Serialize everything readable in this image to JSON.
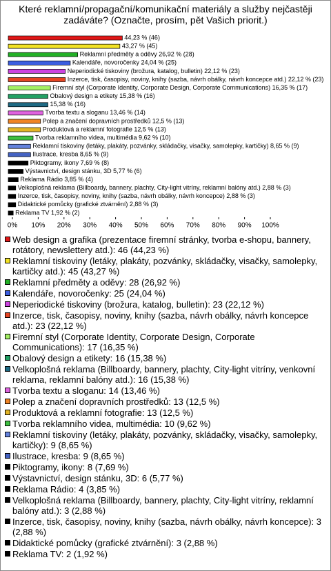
{
  "chart_data": {
    "type": "bar",
    "orientation": "horizontal",
    "title": "Které reklamní/propagační/komunikační materiály a služby nejčastěji zadáváte? (Označte, prosím, pět Vašich priorit.)",
    "categories": [
      "Web design a grafika (prezentace firemní stránky, tvorba e-shopu, bannery, rotátory, newslettery atd.): 46 (44,23 %)",
      "Reklamní tiskoviny (letáky, plakáty, pozvánky, skládačky, visačky, samolepky, kartičky atd.): 45 (43,27 %)",
      "Reklamní předměty a oděvy: 28 (26,92 %)",
      "Kalendáře, novoročenky: 25 (24,04 %)",
      "Neperiodické tiskoviny (brožura, katalog, bulletin): 23 (22,12 %)",
      "Inzerce, tisk, časopisy, noviny, knihy (sazba, návrh obálky, návrh koncepce atd.): 23 (22,12 %)",
      "Firemní styl (Corporate Identity, Corporate Design, Corporate Communications): 17 (16,35 %)",
      "Obalový design a etikety: 16 (15,38 %)",
      "Velkoplošná reklama (Billboardy, bannery, plachty, City-light vitríny, venkovní reklama, reklamní balóny atd.): 16 (15,38 %)",
      "Tvorba textu a sloganu: 14 (13,46 %)",
      "Polep a značení dopravních prostředků: 13 (12,5 %)",
      "Produktová a reklamní fotografie: 13 (12,5 %)",
      "Tvorba reklamního videa, multimédia: 10 (9,62 %)",
      "Reklamní tiskoviny (letáky, plakáty, pozvánky, skládačky, visačky, samolepky, kartičky): 9 (8,65 %)",
      "Ilustrace, kresba: 9 (8,65 %)",
      "Piktogramy, ikony: 8 (7,69 %)",
      "Výstavnictví, design stánku, 3D: 6 (5,77 %)",
      "Reklama Rádio: 4 (3,85 %)",
      "Velkoplošná reklama (Billboardy, bannery, plachty, City-light vitríny, reklamní balóny atd.): 3 (2,88 %)",
      "Inzerce, tisk, časopisy, noviny, knihy (sazba, návrh obálky, návrh koncepce): 3 (2,88 %)",
      "Didaktické pomůcky (grafické ztvárnění): 3 (2,88 %)",
      "Reklama TV: 2 (1,92 %)"
    ],
    "values": [
      44.23,
      43.27,
      26.92,
      24.04,
      22.12,
      22.12,
      16.35,
      15.38,
      15.38,
      13.46,
      12.5,
      12.5,
      9.62,
      8.65,
      8.65,
      7.69,
      5.77,
      3.85,
      2.88,
      2.88,
      2.88,
      1.92
    ],
    "value_labels": [
      "44,23 % (46)",
      "43,27 % (45)",
      "Reklamní předměty a oděvy 26,92 % (28)",
      "Kalendáře, novoročenky 24,04 % (25)",
      "Neperiodické tiskoviny (brožura, katalog, bulletin) 22,12 % (23)",
      "Inzerce, tisk, časopisy, noviny, knihy (sazba, návrh obálky, návrh koncepce atd.) 22,12 % (23)",
      "Firemní styl (Corporate Identity, Corporate Design, Corporate Communications) 16,35 % (17)",
      "Obalový design a etikety 15,38 % (16)",
      "15,38 % (16)",
      "Tvorba textu a sloganu 13,46 % (14)",
      "Polep a značení dopravních prostředků 12,5 % (13)",
      "Produktová a reklamní fotografie 12,5 % (13)",
      "Tvorba reklamního videa, multimédia 9,62 % (10)",
      "Reklamní tiskoviny (letáky, plakáty, pozvánky, skládačky, visačky, samolepky, kartičky) 8,65 % (9)",
      "Ilustrace, kresba 8,65 % (9)",
      "Piktogramy, ikony 7,69 % (8)",
      "Výstavnictví, design stánku, 3D 5,77 % (6)",
      "Reklama Rádio 3,85 % (4)",
      "Velkoplošná reklama (Billboardy, bannery, plachty, City-light vitríny, reklamní balóny atd.) 2,88 % (3)",
      "Inzerce, tisk, časopisy, noviny, knihy (sazba, návrh obálky, návrh koncepce) 2,88 % (3)",
      "Didaktické pomůcky (grafické ztvárnění) 2,88 % (3)",
      "Reklama TV 1,92 % (2)"
    ],
    "colors": [
      "#e01818",
      "#f2e224",
      "#22b026",
      "#3c5ee0",
      "#cc44e0",
      "#e44422",
      "#a4f064",
      "#22a064",
      "#1e6a84",
      "#e064e0",
      "#f08424",
      "#e2b424",
      "#3ec040",
      "#6482dc",
      "#4462c2",
      "#000000",
      "#000000",
      "#000000",
      "#000000",
      "#000000",
      "#000000",
      "#000000"
    ],
    "xlim": [
      0,
      100
    ],
    "xticks": [
      {
        "value": 0,
        "label": "0%"
      },
      {
        "value": 10,
        "label": "10%"
      },
      {
        "value": 20,
        "label": "20%"
      },
      {
        "value": 30,
        "label": "30%"
      },
      {
        "value": 40,
        "label": "40%"
      },
      {
        "value": 50,
        "label": "50%"
      },
      {
        "value": 60,
        "label": "60%"
      },
      {
        "value": 70,
        "label": "70%"
      },
      {
        "value": 80,
        "label": "80%"
      },
      {
        "value": 90,
        "label": "90%"
      },
      {
        "value": 100,
        "label": "100%"
      }
    ]
  }
}
